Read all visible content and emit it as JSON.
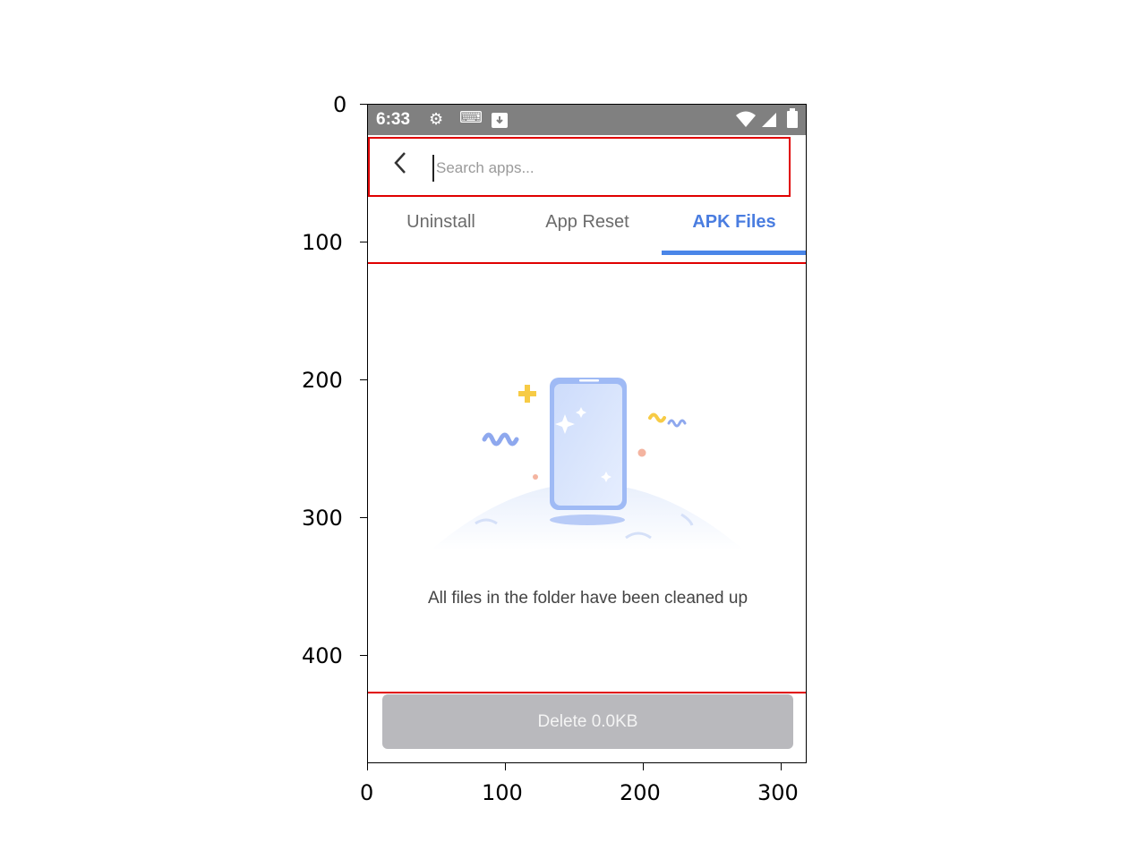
{
  "axes": {
    "y_ticks": [
      "0",
      "100",
      "200",
      "300",
      "400"
    ],
    "x_ticks": [
      "0",
      "100",
      "200",
      "300"
    ]
  },
  "status_bar": {
    "time": "6:33",
    "icons": [
      "settings-icon",
      "keyboard-icon",
      "download-icon",
      "wifi-icon",
      "signal-icon",
      "battery-icon"
    ]
  },
  "search": {
    "placeholder": "Search apps...",
    "value": ""
  },
  "tabs": [
    {
      "label": "Uninstall",
      "active": false
    },
    {
      "label": "App Reset",
      "active": false
    },
    {
      "label": "APK Files",
      "active": true
    }
  ],
  "empty_state": {
    "message": "All files in the folder have been cleaned up"
  },
  "delete_button": {
    "label": "Delete 0.0KB",
    "enabled": false
  },
  "colors": {
    "accent": "#4a86e8",
    "highlight_box": "#e00000",
    "status_bar": "#808080",
    "disabled_button": "#b9b9bd"
  }
}
